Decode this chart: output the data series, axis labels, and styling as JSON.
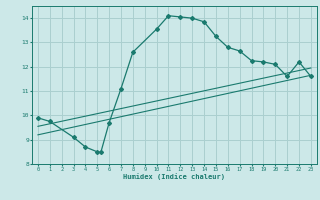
{
  "xlabel": "Humidex (Indice chaleur)",
  "ylabel": "",
  "bg_color": "#cce8e8",
  "line_color": "#1a7a6e",
  "grid_color": "#aacfcf",
  "xlim": [
    -0.5,
    23.5
  ],
  "ylim": [
    8,
    14.5
  ],
  "xticks": [
    0,
    1,
    2,
    3,
    4,
    5,
    6,
    7,
    8,
    9,
    10,
    11,
    12,
    13,
    14,
    15,
    16,
    17,
    18,
    19,
    20,
    21,
    22,
    23
  ],
  "yticks": [
    8,
    9,
    10,
    11,
    12,
    13,
    14
  ],
  "series1_x": [
    0,
    1,
    3,
    4,
    5,
    5.3,
    6,
    7,
    8,
    10,
    11,
    12,
    13,
    14,
    15,
    16,
    17,
    18,
    19,
    20,
    21,
    22,
    23
  ],
  "series1_y": [
    9.9,
    9.75,
    9.1,
    8.7,
    8.5,
    8.48,
    9.7,
    11.1,
    12.6,
    13.55,
    14.1,
    14.05,
    14.0,
    13.85,
    13.25,
    12.8,
    12.65,
    12.25,
    12.2,
    12.1,
    11.6,
    12.2,
    11.6
  ],
  "series2_x": [
    0,
    23
  ],
  "series2_y": [
    9.2,
    11.65
  ],
  "series3_x": [
    0,
    23
  ],
  "series3_y": [
    9.55,
    11.95
  ]
}
